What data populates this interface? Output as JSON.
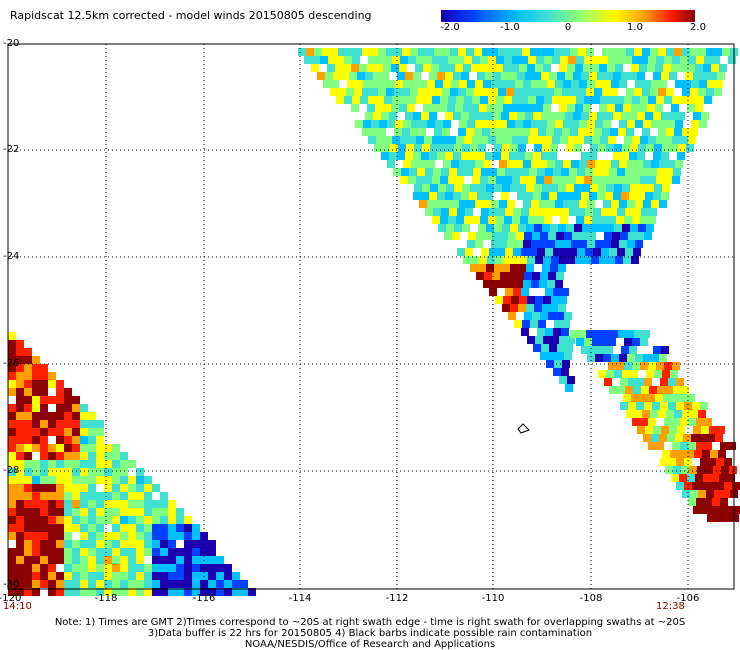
{
  "title": "Rapidscat 12.5km corrected - model winds 20150805 descending",
  "colorbar": {
    "labels": [
      "-2.0",
      "-1.0",
      "0",
      "1.0",
      "2.0"
    ],
    "min": -2.0,
    "max": 2.0,
    "colors": [
      "#1a00b0",
      "#0040ff",
      "#00c0ff",
      "#40e0d0",
      "#80ff80",
      "#ffff00",
      "#ffa000",
      "#ff2000",
      "#8b0000"
    ]
  },
  "axes": {
    "lat_ticks": [
      "-20",
      "-22",
      "-24",
      "-26",
      "-28",
      "-30"
    ],
    "lon_ticks": [
      "-120",
      "-118",
      "-116",
      "-114",
      "-112",
      "-110",
      "-108",
      "-106"
    ],
    "lat_range": [
      -30,
      -20
    ],
    "lon_range": [
      -120,
      -105
    ]
  },
  "times": {
    "left": "14:10",
    "right": "12:38"
  },
  "notes": [
    "Note: 1) Times are GMT 2)Times correspond to ~20S at right swath edge - time is right swath for overlapping swaths at ~20S",
    "3)Data buffer is 22 hrs for 20150805 4) Black barbs indicate possible rain contamination",
    "NOAA/NESDIS/Office of Research and Applications"
  ]
}
